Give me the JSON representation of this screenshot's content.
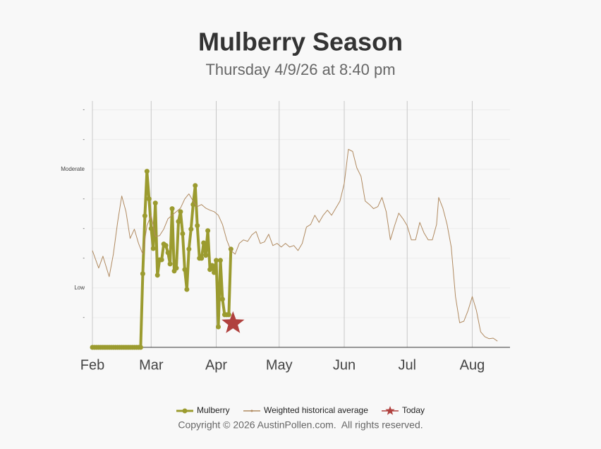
{
  "chart_data": {
    "type": "line",
    "title": "Mulberry Season",
    "subtitle": "Thursday 4/9/26 at 8:40 pm",
    "copyright": "Copyright © 2026 AustinPollen.com.  All rights reserved.",
    "xlim": [
      0,
      199
    ],
    "xticks": [
      {
        "value": 0,
        "label": "Feb"
      },
      {
        "value": 28,
        "label": "Mar"
      },
      {
        "value": 59,
        "label": "Apr"
      },
      {
        "value": 89,
        "label": "May"
      },
      {
        "value": 120,
        "label": "Jun"
      },
      {
        "value": 150,
        "label": "Jul"
      },
      {
        "value": 181,
        "label": "Aug"
      }
    ],
    "ylim": [
      0,
      8.3
    ],
    "yticks": [
      {
        "value": 1,
        "label": "-"
      },
      {
        "value": 2,
        "label": "Low"
      },
      {
        "value": 3,
        "label": "-"
      },
      {
        "value": 4,
        "label": "-"
      },
      {
        "value": 5,
        "label": "-"
      },
      {
        "value": 6,
        "label": "Moderate"
      },
      {
        "value": 7,
        "label": "-"
      },
      {
        "value": 8,
        "label": "-"
      }
    ],
    "grid": true,
    "legend": "bottom",
    "series": [
      {
        "name": "Mulberry",
        "color": "#9b9b2f",
        "x": [
          0,
          1,
          2,
          3,
          4,
          5,
          6,
          7,
          8,
          9,
          10,
          11,
          12,
          13,
          14,
          15,
          16,
          17,
          18,
          19,
          20,
          21,
          22,
          23,
          24,
          25,
          26,
          27,
          28,
          29,
          30,
          31,
          32,
          33,
          34,
          35,
          36,
          37,
          38,
          39,
          40,
          41,
          42,
          43,
          44,
          45,
          46,
          47,
          48,
          49,
          50,
          51,
          52,
          53,
          54,
          55,
          56,
          57,
          58,
          59,
          60,
          61,
          62,
          63,
          64,
          65,
          66
        ],
        "values": [
          0,
          0,
          0,
          0,
          0,
          0,
          0,
          0,
          0,
          0,
          0,
          0,
          0,
          0,
          0,
          0,
          0,
          0,
          0,
          0,
          0,
          0,
          0,
          0,
          2.48,
          4.43,
          5.93,
          5.0,
          4.0,
          3.33,
          4.86,
          2.43,
          2.95,
          2.95,
          3.48,
          3.43,
          3.19,
          2.81,
          4.67,
          2.57,
          2.67,
          4.24,
          4.57,
          3.83,
          2.62,
          1.95,
          3.31,
          3.98,
          4.81,
          5.45,
          4.1,
          3.0,
          3.0,
          3.52,
          3.1,
          3.93,
          2.62,
          2.76,
          2.52,
          2.93,
          0.69,
          2.93,
          1.62,
          1.1,
          1.1,
          1.1,
          3.31
        ]
      },
      {
        "name": "Weighted historical average",
        "color": "#b08a60",
        "x": [
          0,
          3,
          5,
          8,
          10,
          12,
          14,
          16,
          18,
          20,
          22,
          24,
          26,
          28,
          30,
          32,
          34,
          36,
          38,
          40,
          42,
          44,
          46,
          48,
          50,
          52,
          54,
          56,
          58,
          60,
          62,
          64,
          66,
          68,
          70,
          72,
          74,
          76,
          78,
          80,
          82,
          84,
          86,
          88,
          90,
          92,
          94,
          96,
          98,
          100,
          102,
          104,
          106,
          108,
          110,
          112,
          114,
          116,
          118,
          120,
          122,
          124,
          126,
          128,
          130,
          132,
          134,
          136,
          138,
          140,
          142,
          144,
          146,
          148,
          150,
          152,
          154,
          156,
          158,
          160,
          162,
          164,
          165,
          167,
          169,
          171,
          173,
          175,
          177,
          179,
          181,
          183,
          185,
          187,
          189,
          191,
          193
        ],
        "values": [
          3.26,
          2.67,
          3.07,
          2.38,
          3.14,
          4.21,
          5.1,
          4.57,
          3.67,
          3.98,
          3.5,
          3.14,
          4.1,
          4.45,
          3.74,
          3.76,
          3.98,
          4.33,
          4.45,
          4.57,
          4.69,
          5.0,
          5.17,
          4.93,
          4.74,
          4.81,
          4.69,
          4.62,
          4.57,
          4.45,
          4.14,
          3.62,
          3.26,
          3.14,
          3.5,
          3.62,
          3.57,
          3.79,
          3.9,
          3.5,
          3.55,
          3.81,
          3.43,
          3.5,
          3.38,
          3.5,
          3.38,
          3.43,
          3.26,
          3.5,
          4.05,
          4.14,
          4.45,
          4.21,
          4.45,
          4.62,
          4.45,
          4.69,
          4.93,
          5.52,
          6.67,
          6.6,
          6.05,
          5.76,
          4.93,
          4.81,
          4.67,
          4.74,
          5.05,
          4.57,
          3.62,
          4.1,
          4.52,
          4.33,
          4.1,
          3.62,
          3.62,
          4.21,
          3.86,
          3.62,
          3.62,
          4.14,
          5.05,
          4.69,
          4.14,
          3.38,
          1.71,
          0.83,
          0.88,
          1.24,
          1.71,
          1.24,
          0.52,
          0.36,
          0.29,
          0.31,
          0.21
        ]
      },
      {
        "name": "Today",
        "color": "#b0413e",
        "x": [
          67
        ],
        "values": [
          0.81
        ]
      }
    ]
  }
}
